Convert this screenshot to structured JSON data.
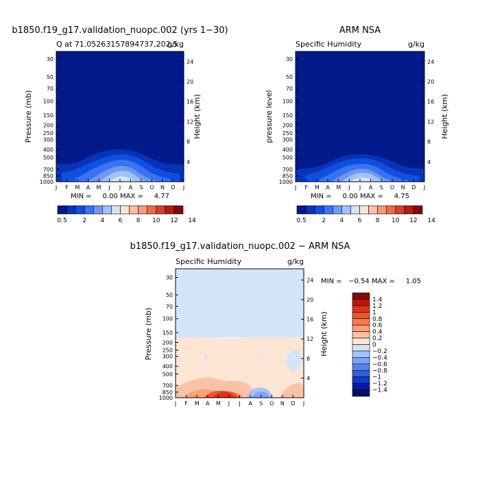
{
  "months": [
    "J",
    "F",
    "M",
    "A",
    "M",
    "J",
    "J",
    "A",
    "S",
    "O",
    "N",
    "D",
    "J"
  ],
  "chart_data": [
    {
      "type": "heatmap",
      "title": "b1850.f19_g17.validation_nuopc.002 (yrs 1−30)",
      "subtitle_left": "Q at 71.05263157894737,202.5",
      "subtitle_right": "g/kg",
      "ylabel": "Pressure (mb)",
      "ylabel_right": "Height (km)",
      "y_ticks": [
        "30",
        "50",
        "70",
        "100",
        "150",
        "200",
        "250",
        "300",
        "400",
        "500",
        "700",
        "850",
        "1000"
      ],
      "y_ticks_right": [
        "24",
        "20",
        "16",
        "12",
        "8",
        "4"
      ],
      "stats": "MIN =     0.00 MAX =     4.77",
      "min": 0.0,
      "max": 4.77
    },
    {
      "type": "heatmap",
      "title": "ARM NSA",
      "subtitle_left": "Specific Humidity",
      "subtitle_right": "g/kg",
      "ylabel": "pressure level",
      "ylabel_right": "Height (km)",
      "y_ticks": [
        "30",
        "50",
        "70",
        "100",
        "150",
        "200",
        "250",
        "300",
        "400",
        "500",
        "700",
        "850",
        "1000"
      ],
      "y_ticks_right": [
        "24",
        "20",
        "16",
        "12",
        "8",
        "4"
      ],
      "stats": "MIN =     0.00 MAX =     4.75",
      "min": 0.0,
      "max": 4.75
    },
    {
      "type": "heatmap",
      "title": "b1850.f19_g17.validation_nuopc.002 − ARM NSA",
      "subtitle_left": "Specific Humidity",
      "subtitle_right": "g/kg",
      "ylabel": "Pressure (mb)",
      "ylabel_right": "Height (km)",
      "y_ticks": [
        "30",
        "50",
        "70",
        "100",
        "150",
        "200",
        "250",
        "300",
        "400",
        "500",
        "700",
        "850",
        "1000"
      ],
      "y_ticks_right": [
        "24",
        "20",
        "16",
        "12",
        "8",
        "4"
      ],
      "stats": "MIN =   −0.54 MAX =     1.05",
      "min": -0.54,
      "max": 1.05
    }
  ],
  "colorbar_top": {
    "labels": [
      "0.5",
      "2",
      "4",
      "6",
      "8",
      "10",
      "12",
      "14"
    ],
    "colors": [
      "#021a8c",
      "#0833b8",
      "#0f4fe0",
      "#3a73f0",
      "#6f98f4",
      "#a4c0f7",
      "#d3e3fb",
      "#fde4d2",
      "#f9c0a4",
      "#f49a78",
      "#ea6c4c",
      "#d5402a",
      "#b31d12",
      "#800a04"
    ]
  },
  "colorbar_diff": {
    "labels": [
      "1.4",
      "1.2",
      "1",
      "0.8",
      "0.6",
      "0.4",
      "0.2",
      "0",
      "−0.2",
      "−0.4",
      "−0.6",
      "−0.8",
      "−1",
      "−1.2",
      "−1.4"
    ],
    "colors": [
      "#870a04",
      "#b61a0f",
      "#dc3318",
      "#f2532b",
      "#f7794f",
      "#f9a079",
      "#fbc3a6",
      "#fde5d4",
      "#d4e4fb",
      "#a6c3f7",
      "#7fa4f4",
      "#5684ef",
      "#2d5fe4",
      "#0e3ccd",
      "#041d9e",
      "#010f6e"
    ]
  }
}
